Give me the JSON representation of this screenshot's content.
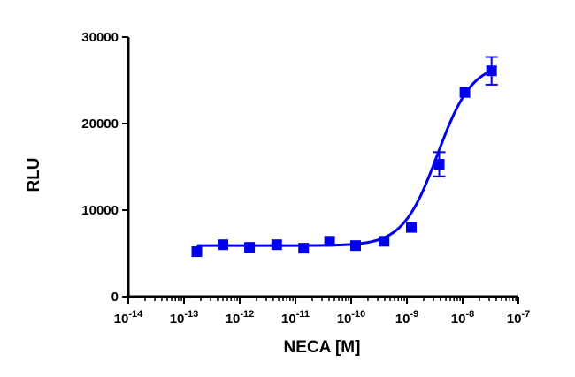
{
  "chart_data": {
    "type": "scatter",
    "xlabel": "NECA [M]",
    "ylabel": "RLU",
    "x_scale": "log",
    "xlim": [
      1e-14,
      1e-07
    ],
    "ylim": [
      0,
      30000
    ],
    "x_ticks": [
      {
        "base": "10",
        "exp": "-14",
        "value": 1e-14
      },
      {
        "base": "10",
        "exp": "-13",
        "value": 1e-13
      },
      {
        "base": "10",
        "exp": "-12",
        "value": 1e-12
      },
      {
        "base": "10",
        "exp": "-11",
        "value": 1e-11
      },
      {
        "base": "10",
        "exp": "-10",
        "value": 1e-10
      },
      {
        "base": "10",
        "exp": "-9",
        "value": 1e-09
      },
      {
        "base": "10",
        "exp": "-8",
        "value": 1e-08
      },
      {
        "base": "10",
        "exp": "-7",
        "value": 1e-07
      }
    ],
    "y_ticks": [
      {
        "label": "0",
        "value": 0
      },
      {
        "label": "10000",
        "value": 10000
      },
      {
        "label": "20000",
        "value": 20000
      },
      {
        "label": "30000",
        "value": 30000
      }
    ],
    "grid": false,
    "color": "#0000ee",
    "marker": "square",
    "series": [
      {
        "points": [
          {
            "x": 1.7e-13,
            "y": 5200,
            "err": 0
          },
          {
            "x": 5e-13,
            "y": 6000,
            "err": 0
          },
          {
            "x": 1.5e-12,
            "y": 5700,
            "err": 0
          },
          {
            "x": 4.6e-12,
            "y": 6000,
            "err": 0
          },
          {
            "x": 1.4e-11,
            "y": 5600,
            "err": 0
          },
          {
            "x": 4.1e-11,
            "y": 6400,
            "err": 0
          },
          {
            "x": 1.2e-10,
            "y": 5900,
            "err": 0
          },
          {
            "x": 3.9e-10,
            "y": 6400,
            "err": 0
          },
          {
            "x": 1.2e-09,
            "y": 8000,
            "err": 0
          },
          {
            "x": 3.8e-09,
            "y": 15300,
            "err": 1400
          },
          {
            "x": 1.1e-08,
            "y": 23600,
            "err": 0
          },
          {
            "x": 3.3e-08,
            "y": 26100,
            "err": 1600
          }
        ],
        "fit": {
          "bottom": 5900,
          "top": 27000,
          "log_ec50": -8.45,
          "hill": 1.4
        }
      }
    ]
  }
}
